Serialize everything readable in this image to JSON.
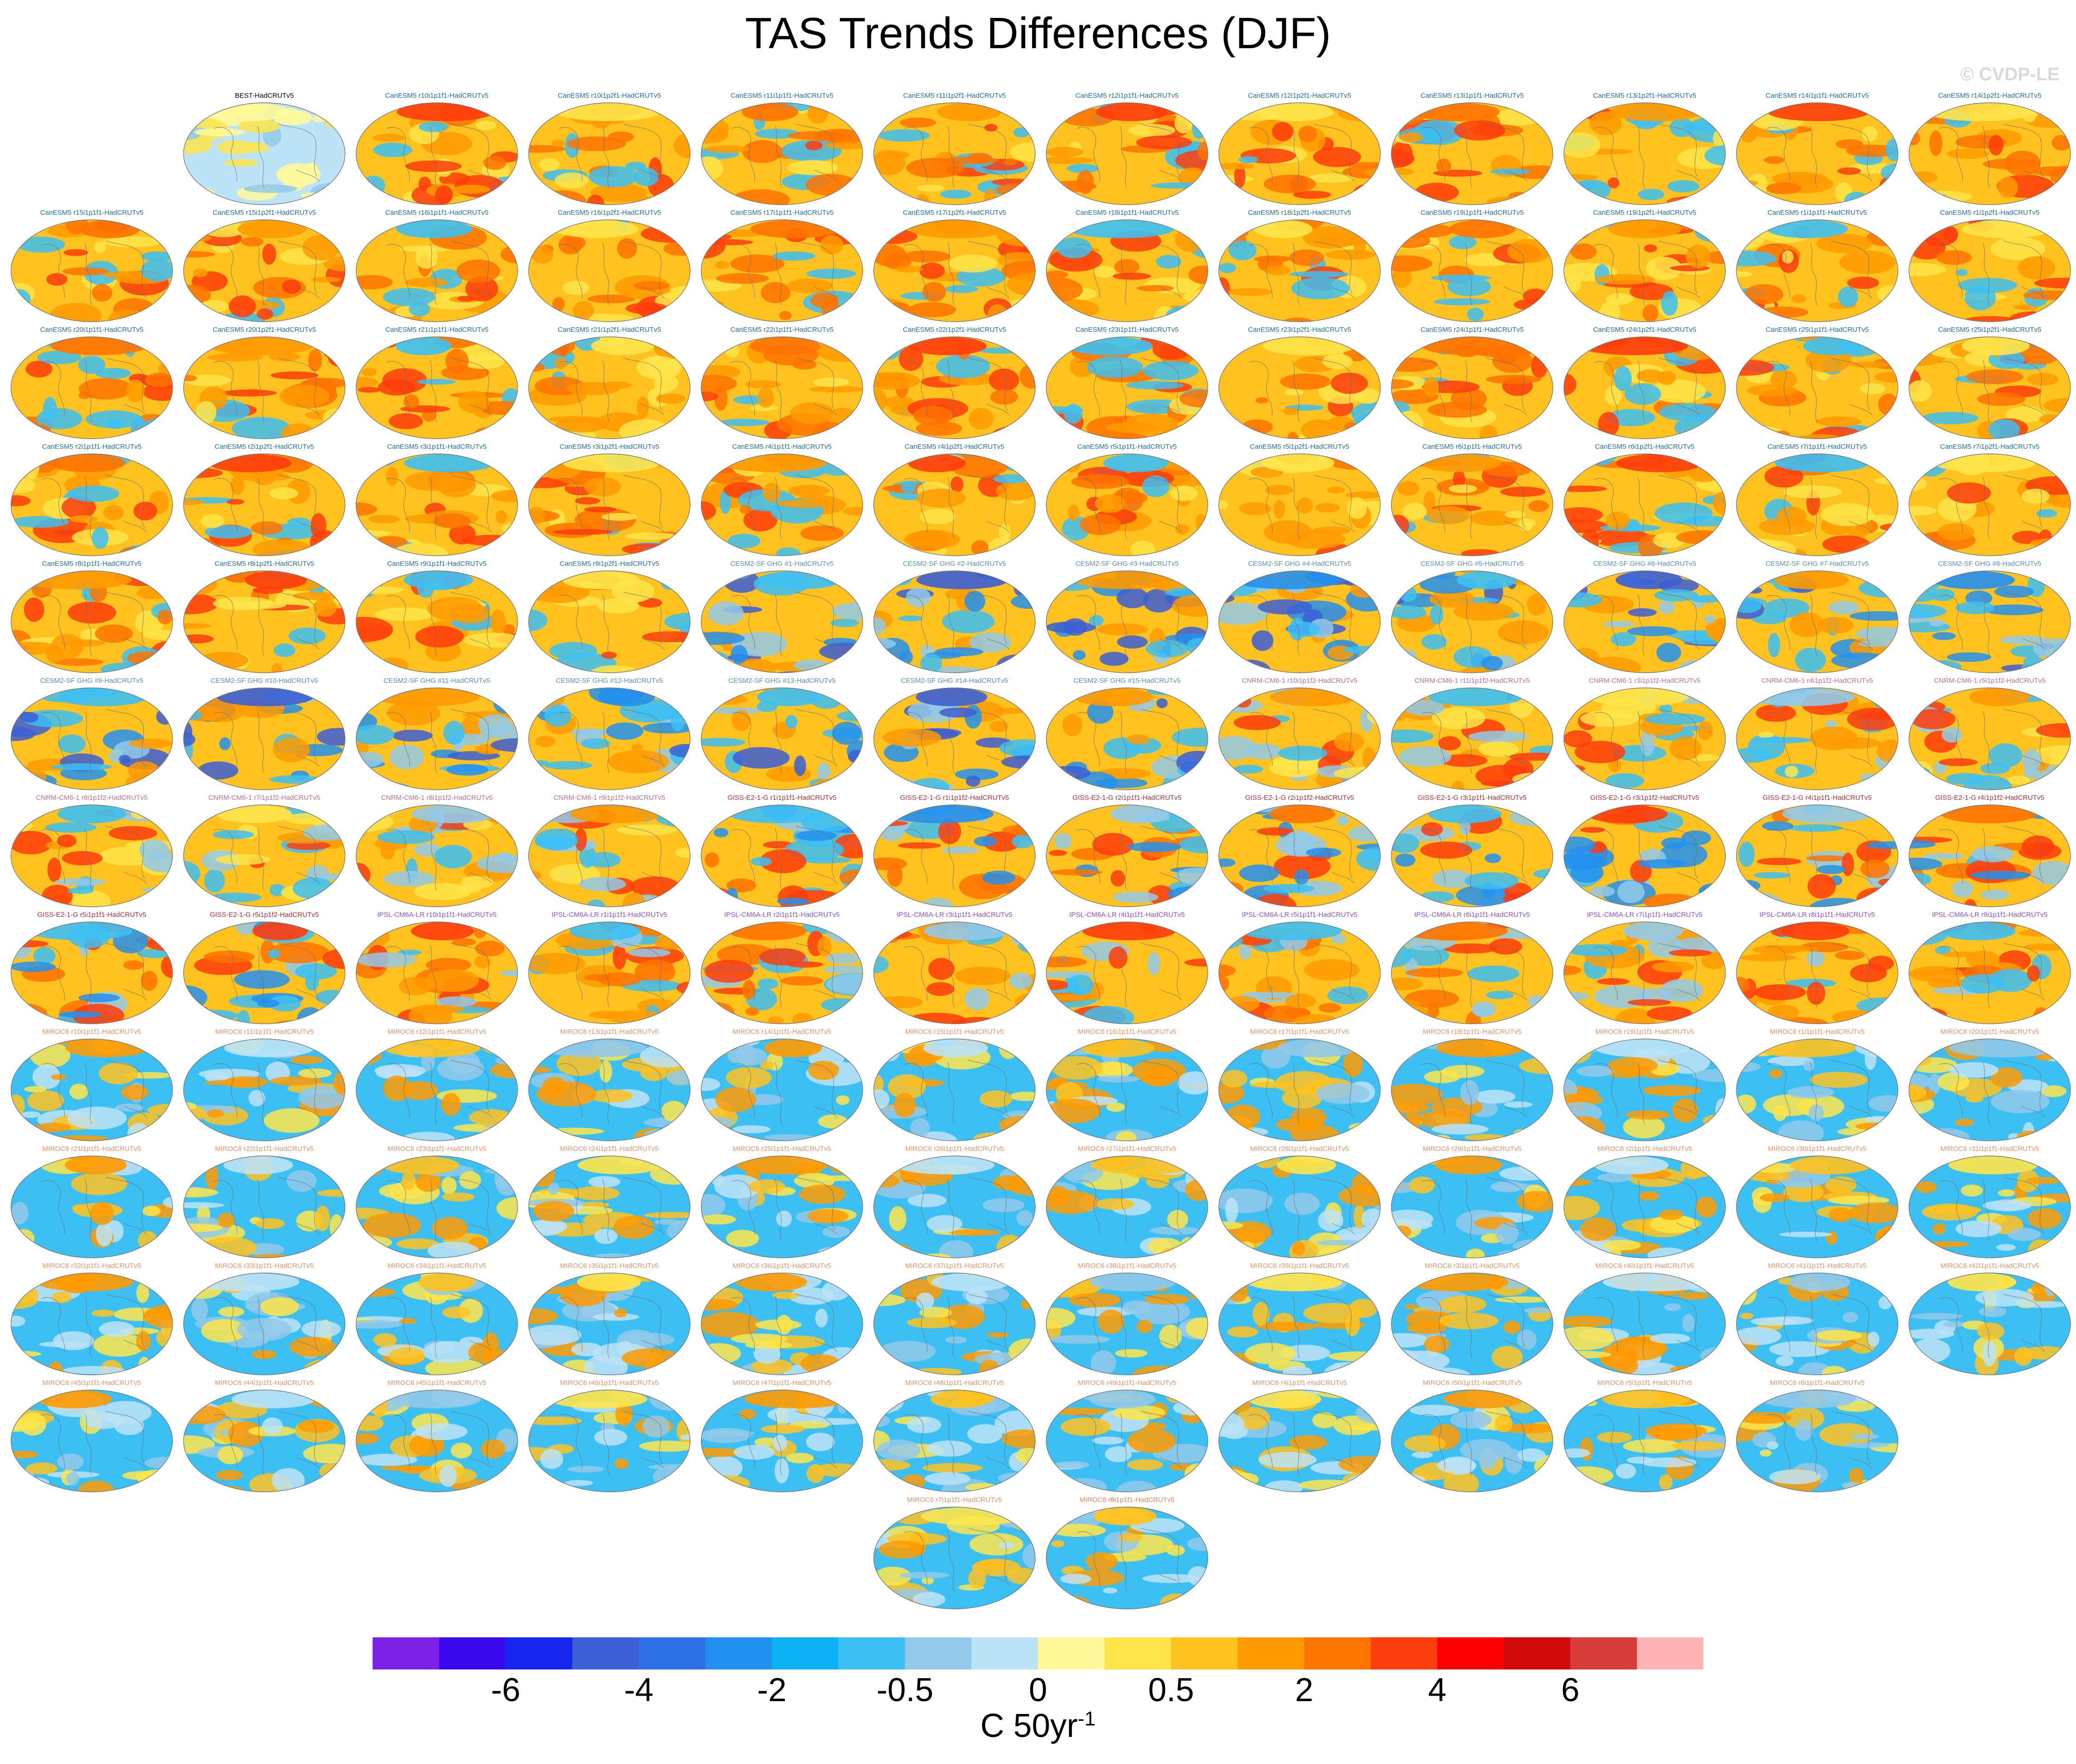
{
  "title": "TAS Trends Differences (DJF)",
  "credit": "© CVDP-LE",
  "colorbar": {
    "colors": [
      "#7b22e6",
      "#3a0aee",
      "#1626ee",
      "#3b5fd6",
      "#2e6fe6",
      "#2290f0",
      "#0db2f4",
      "#3cc0f4",
      "#92c9e9",
      "#bde3f6",
      "#fff99a",
      "#ffe54a",
      "#ffc21e",
      "#ff9a00",
      "#ff7300",
      "#ff3c0c",
      "#ff0000",
      "#d10a0a",
      "#d93b3b",
      "#ffb4b4"
    ],
    "ticks": [
      "-6",
      "-4",
      "-2",
      "-0.5",
      "0",
      "0.5",
      "2",
      "4",
      "6"
    ],
    "units_base": "C 50yr",
    "units_exp": "-1"
  },
  "panels": [
    {
      "label": "BEST-HadCRUTv5",
      "group": "OBS"
    },
    {
      "label": "CanESM5 r10i1p1f1-HadCRUTv5",
      "group": "CanESM5"
    },
    {
      "label": "CanESM5 r10i1p2f1-HadCRUTv5",
      "group": "CanESM5"
    },
    {
      "label": "CanESM5 r11i1p1f1-HadCRUTv5",
      "group": "CanESM5"
    },
    {
      "label": "CanESM5 r11i1p2f1-HadCRUTv5",
      "group": "CanESM5"
    },
    {
      "label": "CanESM5 r12i1p1f1-HadCRUTv5",
      "group": "CanESM5"
    },
    {
      "label": "CanESM5 r12i1p2f1-HadCRUTv5",
      "group": "CanESM5"
    },
    {
      "label": "CanESM5 r13i1p1f1-HadCRUTv5",
      "group": "CanESM5"
    },
    {
      "label": "CanESM5 r13i1p2f1-HadCRUTv5",
      "group": "CanESM5"
    },
    {
      "label": "CanESM5 r14i1p1f1-HadCRUTv5",
      "group": "CanESM5"
    },
    {
      "label": "CanESM5 r14i1p2f1-HadCRUTv5",
      "group": "CanESM5"
    },
    {
      "label": "CanESM5 r15i1p1f1-HadCRUTv5",
      "group": "CanESM5"
    },
    {
      "label": "CanESM5 r15i1p2f1-HadCRUTv5",
      "group": "CanESM5"
    },
    {
      "label": "CanESM5 r16i1p1f1-HadCRUTv5",
      "group": "CanESM5"
    },
    {
      "label": "CanESM5 r16i1p2f1-HadCRUTv5",
      "group": "CanESM5"
    },
    {
      "label": "CanESM5 r17i1p1f1-HadCRUTv5",
      "group": "CanESM5"
    },
    {
      "label": "CanESM5 r17i1p2f1-HadCRUTv5",
      "group": "CanESM5"
    },
    {
      "label": "CanESM5 r18i1p1f1-HadCRUTv5",
      "group": "CanESM5"
    },
    {
      "label": "CanESM5 r18i1p2f1-HadCRUTv5",
      "group": "CanESM5"
    },
    {
      "label": "CanESM5 r19i1p1f1-HadCRUTv5",
      "group": "CanESM5"
    },
    {
      "label": "CanESM5 r19i1p2f1-HadCRUTv5",
      "group": "CanESM5"
    },
    {
      "label": "CanESM5 r1i1p1f1-HadCRUTv5",
      "group": "CanESM5"
    },
    {
      "label": "CanESM5 r1i1p2f1-HadCRUTv5",
      "group": "CanESM5"
    },
    {
      "label": "CanESM5 r20i1p1f1-HadCRUTv5",
      "group": "CanESM5"
    },
    {
      "label": "CanESM5 r20i1p2f1-HadCRUTv5",
      "group": "CanESM5"
    },
    {
      "label": "CanESM5 r21i1p1f1-HadCRUTv5",
      "group": "CanESM5"
    },
    {
      "label": "CanESM5 r21i1p2f1-HadCRUTv5",
      "group": "CanESM5"
    },
    {
      "label": "CanESM5 r22i1p1f1-HadCRUTv5",
      "group": "CanESM5"
    },
    {
      "label": "CanESM5 r22i1p2f1-HadCRUTv5",
      "group": "CanESM5"
    },
    {
      "label": "CanESM5 r23i1p1f1-HadCRUTv5",
      "group": "CanESM5"
    },
    {
      "label": "CanESM5 r23i1p2f1-HadCRUTv5",
      "group": "CanESM5"
    },
    {
      "label": "CanESM5 r24i1p1f1-HadCRUTv5",
      "group": "CanESM5"
    },
    {
      "label": "CanESM5 r24i1p2f1-HadCRUTv5",
      "group": "CanESM5"
    },
    {
      "label": "CanESM5 r25i1p1f1-HadCRUTv5",
      "group": "CanESM5"
    },
    {
      "label": "CanESM5 r25i1p2f1-HadCRUTv5",
      "group": "CanESM5"
    },
    {
      "label": "CanESM5 r2i1p1f1-HadCRUTv5",
      "group": "CanESM5"
    },
    {
      "label": "CanESM5 r2i1p2f1-HadCRUTv5",
      "group": "CanESM5"
    },
    {
      "label": "CanESM5 r3i1p1f1-HadCRUTv5",
      "group": "CanESM5"
    },
    {
      "label": "CanESM5 r3i1p2f1-HadCRUTv5",
      "group": "CanESM5"
    },
    {
      "label": "CanESM5 r4i1p1f1-HadCRUTv5",
      "group": "CanESM5"
    },
    {
      "label": "CanESM5 r4i1p2f1-HadCRUTv5",
      "group": "CanESM5"
    },
    {
      "label": "CanESM5 r5i1p1f1-HadCRUTv5",
      "group": "CanESM5"
    },
    {
      "label": "CanESM5 r5i1p2f1-HadCRUTv5",
      "group": "CanESM5"
    },
    {
      "label": "CanESM5 r6i1p1f1-HadCRUTv5",
      "group": "CanESM5"
    },
    {
      "label": "CanESM5 r6i1p2f1-HadCRUTv5",
      "group": "CanESM5"
    },
    {
      "label": "CanESM5 r7i1p1f1-HadCRUTv5",
      "group": "CanESM5"
    },
    {
      "label": "CanESM5 r7i1p2f1-HadCRUTv5",
      "group": "CanESM5"
    },
    {
      "label": "CanESM5 r8i1p1f1-HadCRUTv5",
      "group": "CanESM5"
    },
    {
      "label": "CanESM5 r8i1p2f1-HadCRUTv5",
      "group": "CanESM5"
    },
    {
      "label": "CanESM5 r9i1p1f1-HadCRUTv5",
      "group": "CanESM5"
    },
    {
      "label": "CanESM5 r9i1p2f1-HadCRUTv5",
      "group": "CanESM5"
    },
    {
      "label": "CESM2-SF GHG #1-HadCRUTv5",
      "group": "CESM2"
    },
    {
      "label": "CESM2-SF GHG #2-HadCRUTv5",
      "group": "CESM2"
    },
    {
      "label": "CESM2-SF GHG #3-HadCRUTv5",
      "group": "CESM2"
    },
    {
      "label": "CESM2-SF GHG #4-HadCRUTv5",
      "group": "CESM2"
    },
    {
      "label": "CESM2-SF GHG #5-HadCRUTv5",
      "group": "CESM2"
    },
    {
      "label": "CESM2-SF GHG #6-HadCRUTv5",
      "group": "CESM2"
    },
    {
      "label": "CESM2-SF GHG #7-HadCRUTv5",
      "group": "CESM2"
    },
    {
      "label": "CESM2-SF GHG #8-HadCRUTv5",
      "group": "CESM2"
    },
    {
      "label": "CESM2-SF GHG #9-HadCRUTv5",
      "group": "CESM2"
    },
    {
      "label": "CESM2-SF GHG #10-HadCRUTv5",
      "group": "CESM2"
    },
    {
      "label": "CESM2-SF GHG #11-HadCRUTv5",
      "group": "CESM2"
    },
    {
      "label": "CESM2-SF GHG #12-HadCRUTv5",
      "group": "CESM2"
    },
    {
      "label": "CESM2-SF GHG #13-HadCRUTv5",
      "group": "CESM2"
    },
    {
      "label": "CESM2-SF GHG #14-HadCRUTv5",
      "group": "CESM2"
    },
    {
      "label": "CESM2-SF GHG #15-HadCRUTv5",
      "group": "CESM2"
    },
    {
      "label": "CNRM-CM6-1 r10i1p1f2-HadCRUTv5",
      "group": "CNRM"
    },
    {
      "label": "CNRM-CM6-1 r11i1p1f2-HadCRUTv5",
      "group": "CNRM"
    },
    {
      "label": "CNRM-CM6-1 r3i1p1f2-HadCRUTv5",
      "group": "CNRM"
    },
    {
      "label": "CNRM-CM6-1 r4i1p1f2-HadCRUTv5",
      "group": "CNRM"
    },
    {
      "label": "CNRM-CM6-1 r5i1p1f2-HadCRUTv5",
      "group": "CNRM"
    },
    {
      "label": "CNRM-CM6-1 r6i1p1f2-HadCRUTv5",
      "group": "CNRM"
    },
    {
      "label": "CNRM-CM6-1 r7i1p1f2-HadCRUTv5",
      "group": "CNRM"
    },
    {
      "label": "CNRM-CM6-1 r8i1p1f2-HadCRUTv5",
      "group": "CNRM"
    },
    {
      "label": "CNRM-CM6-1 r9i1p1f2-HadCRUTv5",
      "group": "CNRM"
    },
    {
      "label": "GISS-E2-1-G r1i1p1f1-HadCRUTv5",
      "group": "GISS"
    },
    {
      "label": "GISS-E2-1-G r1i1p1f2-HadCRUTv5",
      "group": "GISS"
    },
    {
      "label": "GISS-E2-1-G r2i1p1f1-HadCRUTv5",
      "group": "GISS"
    },
    {
      "label": "GISS-E2-1-G r2i1p1f2-HadCRUTv5",
      "group": "GISS"
    },
    {
      "label": "GISS-E2-1-G r3i1p1f1-HadCRUTv5",
      "group": "GISS"
    },
    {
      "label": "GISS-E2-1-G r3i1p1f2-HadCRUTv5",
      "group": "GISS"
    },
    {
      "label": "GISS-E2-1-G r4i1p1f1-HadCRUTv5",
      "group": "GISS"
    },
    {
      "label": "GISS-E2-1-G r4i1p1f2-HadCRUTv5",
      "group": "GISS"
    },
    {
      "label": "GISS-E2-1-G r5i1p1f1-HadCRUTv5",
      "group": "GISS"
    },
    {
      "label": "GISS-E2-1-G r5i1p1f2-HadCRUTv5",
      "group": "GISS"
    },
    {
      "label": "IPSL-CM6A-LR r10i1p1f1-HadCRUTv5",
      "group": "IPSL"
    },
    {
      "label": "IPSL-CM6A-LR r1i1p1f1-HadCRUTv5",
      "group": "IPSL"
    },
    {
      "label": "IPSL-CM6A-LR r2i1p1f1-HadCRUTv5",
      "group": "IPSL"
    },
    {
      "label": "IPSL-CM6A-LR r3i1p1f1-HadCRUTv5",
      "group": "IPSL"
    },
    {
      "label": "IPSL-CM6A-LR r4i1p1f1-HadCRUTv5",
      "group": "IPSL"
    },
    {
      "label": "IPSL-CM6A-LR r5i1p1f1-HadCRUTv5",
      "group": "IPSL"
    },
    {
      "label": "IPSL-CM6A-LR r6i1p1f1-HadCRUTv5",
      "group": "IPSL"
    },
    {
      "label": "IPSL-CM6A-LR r7i1p1f1-HadCRUTv5",
      "group": "IPSL"
    },
    {
      "label": "IPSL-CM6A-LR r8i1p1f1-HadCRUTv5",
      "group": "IPSL"
    },
    {
      "label": "IPSL-CM6A-LR r9i1p1f1-HadCRUTv5",
      "group": "IPSL"
    },
    {
      "label": "MIROC6 r10i1p1f1-HadCRUTv5",
      "group": "MIROC6"
    },
    {
      "label": "MIROC6 r11i1p1f1-HadCRUTv5",
      "group": "MIROC6"
    },
    {
      "label": "MIROC6 r12i1p1f1-HadCRUTv5",
      "group": "MIROC6"
    },
    {
      "label": "MIROC6 r13i1p1f1-HadCRUTv5",
      "group": "MIROC6"
    },
    {
      "label": "MIROC6 r14i1p1f1-HadCRUTv5",
      "group": "MIROC6"
    },
    {
      "label": "MIROC6 r15i1p1f1-HadCRUTv5",
      "group": "MIROC6"
    },
    {
      "label": "MIROC6 r16i1p1f1-HadCRUTv5",
      "group": "MIROC6"
    },
    {
      "label": "MIROC6 r17i1p1f1-HadCRUTv5",
      "group": "MIROC6"
    },
    {
      "label": "MIROC6 r18i1p1f1-HadCRUTv5",
      "group": "MIROC6"
    },
    {
      "label": "MIROC6 r19i1p1f1-HadCRUTv5",
      "group": "MIROC6"
    },
    {
      "label": "MIROC6 r1i1p1f1-HadCRUTv5",
      "group": "MIROC6"
    },
    {
      "label": "MIROC6 r20i1p1f1-HadCRUTv5",
      "group": "MIROC6"
    },
    {
      "label": "MIROC6 r21i1p1f1-HadCRUTv5",
      "group": "MIROC6"
    },
    {
      "label": "MIROC6 r22i1p1f1-HadCRUTv5",
      "group": "MIROC6"
    },
    {
      "label": "MIROC6 r23i1p1f1-HadCRUTv5",
      "group": "MIROC6"
    },
    {
      "label": "MIROC6 r24i1p1f1-HadCRUTv5",
      "group": "MIROC6"
    },
    {
      "label": "MIROC6 r25i1p1f1-HadCRUTv5",
      "group": "MIROC6"
    },
    {
      "label": "MIROC6 r26i1p1f1-HadCRUTv5",
      "group": "MIROC6"
    },
    {
      "label": "MIROC6 r27i1p1f1-HadCRUTv5",
      "group": "MIROC6"
    },
    {
      "label": "MIROC6 r28i1p1f1-HadCRUTv5",
      "group": "MIROC6"
    },
    {
      "label": "MIROC6 r29i1p1f1-HadCRUTv5",
      "group": "MIROC6"
    },
    {
      "label": "MIROC6 r2i1p1f1-HadCRUTv5",
      "group": "MIROC6"
    },
    {
      "label": "MIROC6 r30i1p1f1-HadCRUTv5",
      "group": "MIROC6"
    },
    {
      "label": "MIROC6 r31i1p1f1-HadCRUTv5",
      "group": "MIROC6"
    },
    {
      "label": "MIROC6 r32i1p1f1-HadCRUTv5",
      "group": "MIROC6"
    },
    {
      "label": "MIROC6 r33i1p1f1-HadCRUTv5",
      "group": "MIROC6"
    },
    {
      "label": "MIROC6 r34i1p1f1-HadCRUTv5",
      "group": "MIROC6"
    },
    {
      "label": "MIROC6 r35i1p1f1-HadCRUTv5",
      "group": "MIROC6"
    },
    {
      "label": "MIROC6 r36i1p1f1-HadCRUTv5",
      "group": "MIROC6"
    },
    {
      "label": "MIROC6 r37i1p1f1-HadCRUTv5",
      "group": "MIROC6"
    },
    {
      "label": "MIROC6 r38i1p1f1-HadCRUTv5",
      "group": "MIROC6"
    },
    {
      "label": "MIROC6 r39i1p1f1-HadCRUTv5",
      "group": "MIROC6"
    },
    {
      "label": "MIROC6 r3i1p1f1-HadCRUTv5",
      "group": "MIROC6"
    },
    {
      "label": "MIROC6 r40i1p1f1-HadCRUTv5",
      "group": "MIROC6"
    },
    {
      "label": "MIROC6 r41i1p1f1-HadCRUTv5",
      "group": "MIROC6"
    },
    {
      "label": "MIROC6 r42i1p1f1-HadCRUTv5",
      "group": "MIROC6"
    },
    {
      "label": "MIROC6 r43i1p1f1-HadCRUTv5",
      "group": "MIROC6"
    },
    {
      "label": "MIROC6 r44i1p1f1-HadCRUTv5",
      "group": "MIROC6"
    },
    {
      "label": "MIROC6 r45i1p1f1-HadCRUTv5",
      "group": "MIROC6"
    },
    {
      "label": "MIROC6 r46i1p1f1-HadCRUTv5",
      "group": "MIROC6"
    },
    {
      "label": "MIROC6 r47i1p1f1-HadCRUTv5",
      "group": "MIROC6"
    },
    {
      "label": "MIROC6 r48i1p1f1-HadCRUTv5",
      "group": "MIROC6"
    },
    {
      "label": "MIROC6 r49i1p1f1-HadCRUTv5",
      "group": "MIROC6"
    },
    {
      "label": "MIROC6 r4i1p1f1-HadCRUTv5",
      "group": "MIROC6"
    },
    {
      "label": "MIROC6 r50i1p1f1-HadCRUTv5",
      "group": "MIROC6"
    },
    {
      "label": "MIROC6 r5i1p1f1-HadCRUTv5",
      "group": "MIROC6"
    },
    {
      "label": "MIROC6 r6i1p1f1-HadCRUTv5",
      "group": "MIROC6"
    },
    {
      "label": "MIROC6 r7i1p1f1-HadCRUTv5",
      "group": "MIROC6"
    },
    {
      "label": "MIROC6 r8i1p1f1-HadCRUTv5",
      "group": "MIROC6"
    },
    {
      "label": "MIROC6 r9i1p1f1-HadCRUTv5",
      "group": "MIROC6"
    }
  ],
  "group_styles": {
    "OBS": {
      "label_color": "#000000",
      "base": "#bde3f6",
      "blobs": [
        "#fff99a",
        "#92c9e9",
        "#ffe54a"
      ]
    },
    "CanESM5": {
      "label_color": "#1f6f9f",
      "base": "#ffc21e",
      "blobs": [
        "#ff9a00",
        "#ff7300",
        "#ffe54a",
        "#3cc0f4",
        "#ff3c0c"
      ]
    },
    "CESM2": {
      "label_color": "#5a8fb4",
      "base": "#ffc21e",
      "blobs": [
        "#3cc0f4",
        "#2290f0",
        "#92c9e9",
        "#ff9a00",
        "#3b5fd6"
      ]
    },
    "CNRM": {
      "label_color": "#c06f8f",
      "base": "#ffc21e",
      "blobs": [
        "#3cc0f4",
        "#ff9a00",
        "#92c9e9",
        "#ff3c0c",
        "#ffe54a"
      ]
    },
    "GISS": {
      "label_color": "#a8323a",
      "base": "#ffc21e",
      "blobs": [
        "#3cc0f4",
        "#ff7300",
        "#92c9e9",
        "#ff3c0c",
        "#2290f0"
      ]
    },
    "IPSL": {
      "label_color": "#8c4fd1",
      "base": "#ffc21e",
      "blobs": [
        "#ff7300",
        "#3cc0f4",
        "#ff3c0c",
        "#92c9e9",
        "#ff9a00"
      ]
    },
    "MIROC6": {
      "label_color": "#e3946a",
      "base": "#3cc0f4",
      "blobs": [
        "#ffe54a",
        "#92c9e9",
        "#ffc21e",
        "#bde3f6",
        "#ff9a00"
      ]
    }
  }
}
